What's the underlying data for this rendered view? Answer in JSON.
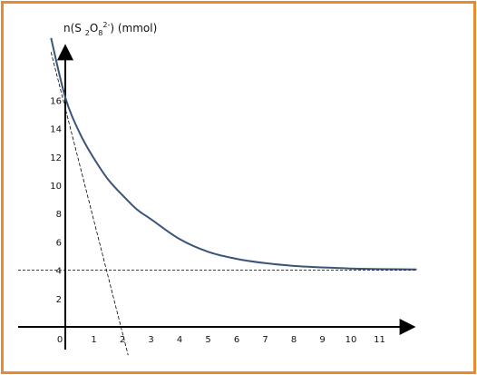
{
  "chart_data": {
    "type": "line",
    "ylabel_parts": {
      "pre": "n(S ",
      "sub1": "2",
      "mid": "O",
      "sub2": "8",
      "sup": "2-",
      "post": ") (mmol)"
    },
    "xlabel": "",
    "x_ticks": [
      0,
      1,
      2,
      3,
      4,
      5,
      6,
      7,
      8,
      9,
      10,
      11
    ],
    "y_ticks": [
      2,
      4,
      6,
      8,
      10,
      12,
      14,
      16
    ],
    "series": [
      {
        "x": [
          -0.5,
          0,
          0.5,
          1,
          1.5,
          2,
          2.5,
          3,
          4,
          5,
          6,
          7,
          8,
          9,
          10,
          11,
          12.3
        ],
        "values": [
          20.4,
          16.2,
          13.7,
          11.9,
          10.4,
          9.3,
          8.3,
          7.6,
          6.2,
          5.3,
          4.8,
          4.5,
          4.3,
          4.2,
          4.12,
          4.08,
          4.05
        ]
      }
    ],
    "asymptote_y": 4,
    "tangent": {
      "x": [
        -0.5,
        2.2
      ],
      "y": [
        19.4,
        -2.0
      ]
    },
    "colors": {
      "curve": "#3b5478",
      "frame": "#e98a2e",
      "axis": "#000000"
    }
  }
}
